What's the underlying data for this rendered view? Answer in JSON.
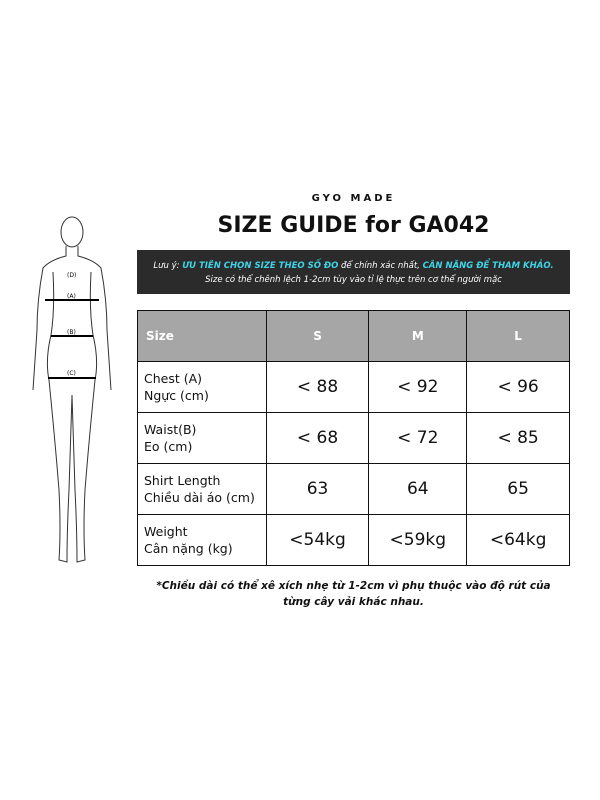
{
  "brand": "GYO MADE",
  "title": "SIZE GUIDE for GA042",
  "note": {
    "prefix": "Lưu ý: ",
    "hl1": "ƯU TIÊN CHỌN SIZE THEO SỐ ĐO",
    "mid": " để chính xác nhất, ",
    "hl2": "CÂN NẶNG ĐỂ THAM KHẢO.",
    "line2": "Size có thể chênh lệch 1-2cm tùy vào tỉ lệ thực trên cơ thể người mặc",
    "accent": "#3fd3e6"
  },
  "figure": {
    "labels": [
      "(D)",
      "(A)",
      "(B)",
      "(C)"
    ]
  },
  "table": {
    "headers": [
      "Size",
      "S",
      "M",
      "L"
    ],
    "rows": [
      {
        "l1": "Chest (A)",
        "l2": "Ngực (cm)",
        "v": [
          "< 88",
          "< 92",
          "< 96"
        ]
      },
      {
        "l1": "Waist(B)",
        "l2": "Eo (cm)",
        "v": [
          "< 68",
          "< 72",
          "< 85"
        ]
      },
      {
        "l1": "Shirt Length",
        "l2": "Chiều dài áo (cm)",
        "v": [
          "63",
          "64",
          "65"
        ]
      },
      {
        "l1": "Weight",
        "l2": "Cân nặng (kg)",
        "v": [
          "<54kg",
          "<59kg",
          "<64kg"
        ]
      }
    ]
  },
  "footnote": {
    "l1": "*Chiều dài có thể xê xích nhẹ từ 1-2cm vì phụ thuộc vào độ rút của",
    "l2": "từng cây vải khác nhau."
  }
}
